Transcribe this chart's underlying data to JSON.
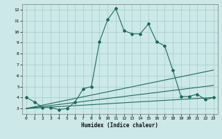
{
  "xlabel": "Humidex (Indice chaleur)",
  "bg_color": "#cce8e8",
  "grid_color": "#aad0d0",
  "line_color": "#1a6b5a",
  "xlim": [
    -0.5,
    23.5
  ],
  "ylim": [
    2.5,
    12.5
  ],
  "xticks": [
    0,
    1,
    2,
    3,
    4,
    5,
    6,
    7,
    8,
    9,
    10,
    11,
    12,
    13,
    14,
    15,
    16,
    17,
    18,
    19,
    20,
    21,
    22,
    23
  ],
  "yticks": [
    3,
    4,
    5,
    6,
    7,
    8,
    9,
    10,
    11,
    12
  ],
  "main_x": [
    0,
    1,
    2,
    3,
    4,
    5,
    6,
    7,
    8,
    9,
    10,
    11,
    12,
    13,
    14,
    15,
    16,
    17,
    18,
    19,
    20,
    21,
    22,
    23
  ],
  "main_y": [
    4.0,
    3.6,
    3.1,
    3.1,
    2.9,
    3.0,
    3.6,
    4.8,
    5.0,
    9.1,
    11.1,
    12.1,
    10.1,
    9.8,
    9.8,
    10.7,
    9.1,
    8.7,
    6.5,
    4.1,
    4.1,
    4.3,
    3.8,
    4.0
  ],
  "line2_x": [
    0,
    23
  ],
  "line2_y": [
    3.0,
    6.5
  ],
  "line3_x": [
    0,
    23
  ],
  "line3_y": [
    3.0,
    5.1
  ],
  "line4_x": [
    0,
    23
  ],
  "line4_y": [
    3.0,
    4.0
  ],
  "markersize": 2.0,
  "linewidth": 0.8
}
